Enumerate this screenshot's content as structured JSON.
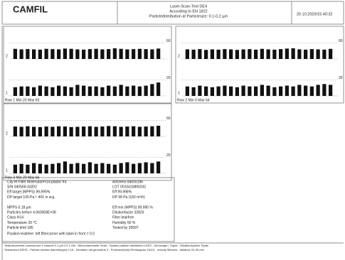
{
  "header": {
    "logo": "CAMFIL",
    "lines": [
      "Laser-Scan-Test DE4",
      "According to EN 1822",
      "Particledistribution at Particlesize: 0.1-0.2 µm"
    ],
    "date": "20.10.2020/15:40:32"
  },
  "panels": [
    {
      "caption": "Row 1 Min 20 Max 65",
      "strips": [
        {
          "label": "2",
          "ylim": [
            0,
            80
          ],
          "tick": {
            "value": 60,
            "label": "60"
          },
          "values": [
            38,
            36,
            37,
            36,
            35,
            38,
            37,
            36,
            39,
            38,
            36,
            35,
            37,
            38,
            36,
            37,
            40,
            38,
            36,
            37,
            38,
            37,
            36,
            39
          ]
        },
        {
          "label": "1",
          "ylim": [
            0,
            27
          ],
          "tick": {
            "value": 20,
            "label": "20"
          },
          "values": [
            11,
            12,
            12,
            11,
            13,
            12,
            11,
            13,
            12,
            11,
            14,
            13,
            12,
            12,
            11,
            13,
            12,
            14,
            12,
            13,
            12,
            13,
            15,
            17
          ]
        }
      ]
    },
    {
      "caption": "Row 2 Min 0 Max 64",
      "strips": [
        {
          "label": "2",
          "ylim": [
            0,
            80
          ],
          "tick": {
            "value": 60,
            "label": "60"
          },
          "values": [
            36,
            35,
            37,
            34,
            36,
            35,
            37,
            36,
            34,
            36,
            37,
            35,
            38,
            36,
            35,
            37,
            39,
            40,
            36,
            35,
            37,
            36,
            35,
            38
          ]
        },
        {
          "label": "1",
          "ylim": [
            0,
            27
          ],
          "tick": {
            "value": 20,
            "label": "20"
          },
          "values": [
            12,
            11,
            13,
            12,
            11,
            12,
            13,
            12,
            11,
            13,
            12,
            12,
            14,
            13,
            11,
            12,
            13,
            12,
            14,
            13,
            12,
            14,
            15,
            14
          ]
        }
      ]
    },
    {
      "caption": "Row 3 Min 20 Max 66",
      "strips": [
        {
          "label": "2",
          "ylim": [
            0,
            80
          ],
          "tick": {
            "value": 60,
            "label": "60"
          },
          "values": [
            37,
            36,
            38,
            36,
            35,
            37,
            36,
            38,
            37,
            35,
            36,
            37,
            38,
            36,
            37,
            39,
            38,
            36,
            37,
            38,
            36,
            37,
            38,
            40
          ]
        },
        {
          "label": "1",
          "ylim": [
            0,
            27
          ],
          "tick": {
            "value": 20,
            "label": "20"
          },
          "values": [
            11,
            12,
            11,
            13,
            12,
            11,
            12,
            13,
            15,
            12,
            13,
            12,
            14,
            12,
            13,
            12,
            11,
            13,
            14,
            12,
            13,
            14,
            13,
            15
          ]
        }
      ]
    }
  ],
  "info": {
    "left": [
      "City M Filter Molecular/H14-plastic fra",
      "S/N 040569-43202",
      "Eff target (MPPS) 99,995%",
      "DP target 100 Pa / .401 in w.g.",
      "",
      "MPPS 0.18 µm",
      "Particles before 4.060058E+08",
      "Class H14",
      "Temperature 20 °C",
      "Particle limit 185"
    ],
    "right": [
      "Articleno 84000196",
      "LOT 0010416890242",
      "Eff 99,998%",
      "DP 99 Pa (150 m³/h)",
      "",
      "Eff min (MPPS) 99.995 %",
      "Dilutionfactor 32826",
      "Filter leakfree",
      "Humidity 50 %",
      "Tested by 30597"
    ],
    "position": "Position leakfree: left filtercorner with label in front = 0.0"
  },
  "footer": [
    "Testinstruments Lasersensor 4 channel 0.1 µm LH 1 cfm - Micromanometer Setra - System particle distribution LASX - Aerosolgen. Topas - Diluationsystem Topas",
    "Testaerosol DEHS - Particle median diameter[µm] 0.16 - Deviation std geometrie 3 - Probesize[mm] Rectangular 13x15 - velocity 58mm/s - distance 20-30 mm"
  ]
}
